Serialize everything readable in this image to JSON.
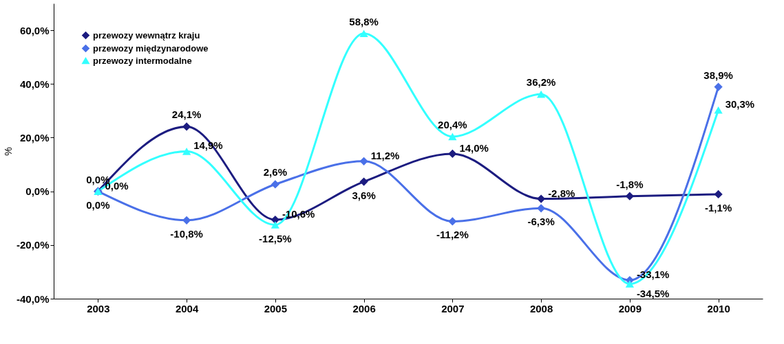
{
  "chart_data": {
    "type": "line",
    "ylabel": "%",
    "categories": [
      "2003",
      "2004",
      "2005",
      "2006",
      "2007",
      "2008",
      "2009",
      "2010"
    ],
    "series": [
      {
        "name": "przewozy wewnątrz kraju",
        "color": "#1c1c80",
        "marker": "diamond",
        "values": [
          0.0,
          24.1,
          -10.6,
          3.6,
          14.0,
          -2.8,
          -1.8,
          -1.1
        ],
        "value_labels": [
          "0,0%",
          "24,1%",
          "-10,6%",
          "3,6%",
          "14,0%",
          "-2,8%",
          "-1,8%",
          "-1,1%"
        ]
      },
      {
        "name": "przewozy międzynarodowe",
        "color": "#4a70e8",
        "marker": "diamond",
        "values": [
          0.0,
          -10.8,
          2.6,
          11.2,
          -11.2,
          -6.3,
          -33.1,
          38.9
        ],
        "value_labels": [
          "0,0%",
          "-10,8%",
          "2,6%",
          "11,2%",
          "-11,2%",
          "-6,3%",
          "-33,1%",
          "38,9%"
        ]
      },
      {
        "name": "przewozy intermodalne",
        "color": "#33ffff",
        "marker": "triangle",
        "values": [
          0.0,
          14.9,
          -12.5,
          58.8,
          20.4,
          36.2,
          -34.5,
          30.3
        ],
        "value_labels": [
          "0,0%",
          "14,9%",
          "-12,5%",
          "58,8%",
          "20,4%",
          "36,2%",
          "-34,5%",
          "30,3%"
        ]
      }
    ],
    "ylim": [
      -40,
      70
    ],
    "yticks": [
      {
        "value": -40,
        "label": "-40,0%"
      },
      {
        "value": -20,
        "label": "-20,0%"
      },
      {
        "value": 0,
        "label": "0,0%"
      },
      {
        "value": 20,
        "label": "20,0%"
      },
      {
        "value": 40,
        "label": "40,0%"
      },
      {
        "value": 60,
        "label": "60,0%"
      }
    ],
    "legend": "top left",
    "grid": false
  }
}
